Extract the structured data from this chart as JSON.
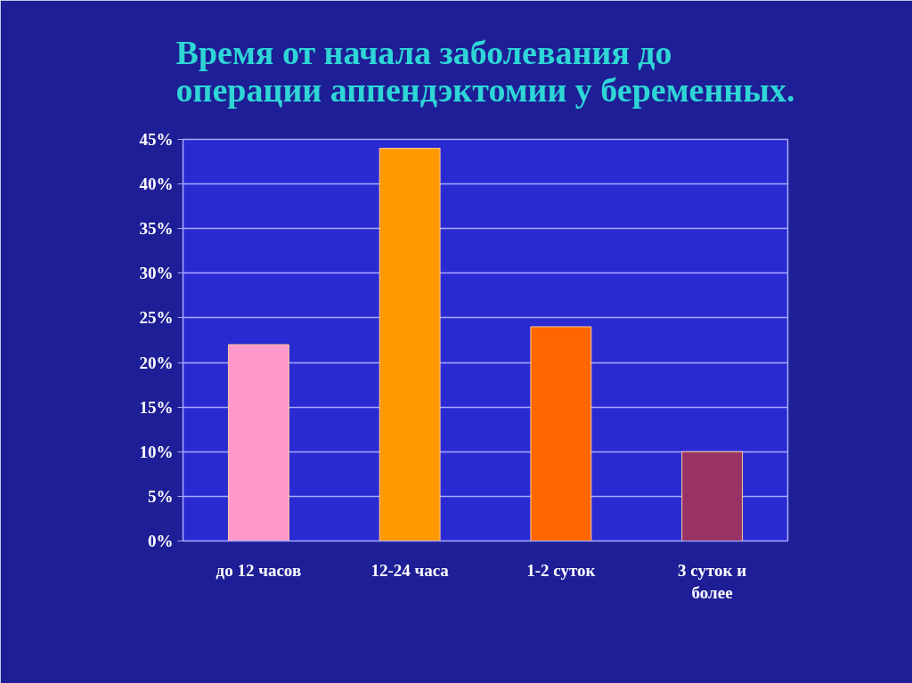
{
  "chart_data": {
    "type": "bar",
    "title": "Время от начала заболевания до операции аппендэктомии у беременных.",
    "categories": [
      "до 12 часов",
      "12-24 часа",
      "1-2 суток",
      "3 суток и более"
    ],
    "values": [
      22,
      44,
      24,
      10
    ],
    "colors": [
      "#ff99cc",
      "#ff9900",
      "#ff6600",
      "#993366"
    ],
    "ylim": [
      0,
      45
    ],
    "yticks": [
      {
        "value": 0,
        "label": "0%"
      },
      {
        "value": 5,
        "label": "5%"
      },
      {
        "value": 10,
        "label": "10%"
      },
      {
        "value": 15,
        "label": "15%"
      },
      {
        "value": 20,
        "label": "20%"
      },
      {
        "value": 25,
        "label": "25%"
      },
      {
        "value": 30,
        "label": "30%"
      },
      {
        "value": 35,
        "label": "35%"
      },
      {
        "value": 40,
        "label": "40%"
      },
      {
        "value": 45,
        "label": "45%"
      }
    ],
    "grid": "y"
  }
}
